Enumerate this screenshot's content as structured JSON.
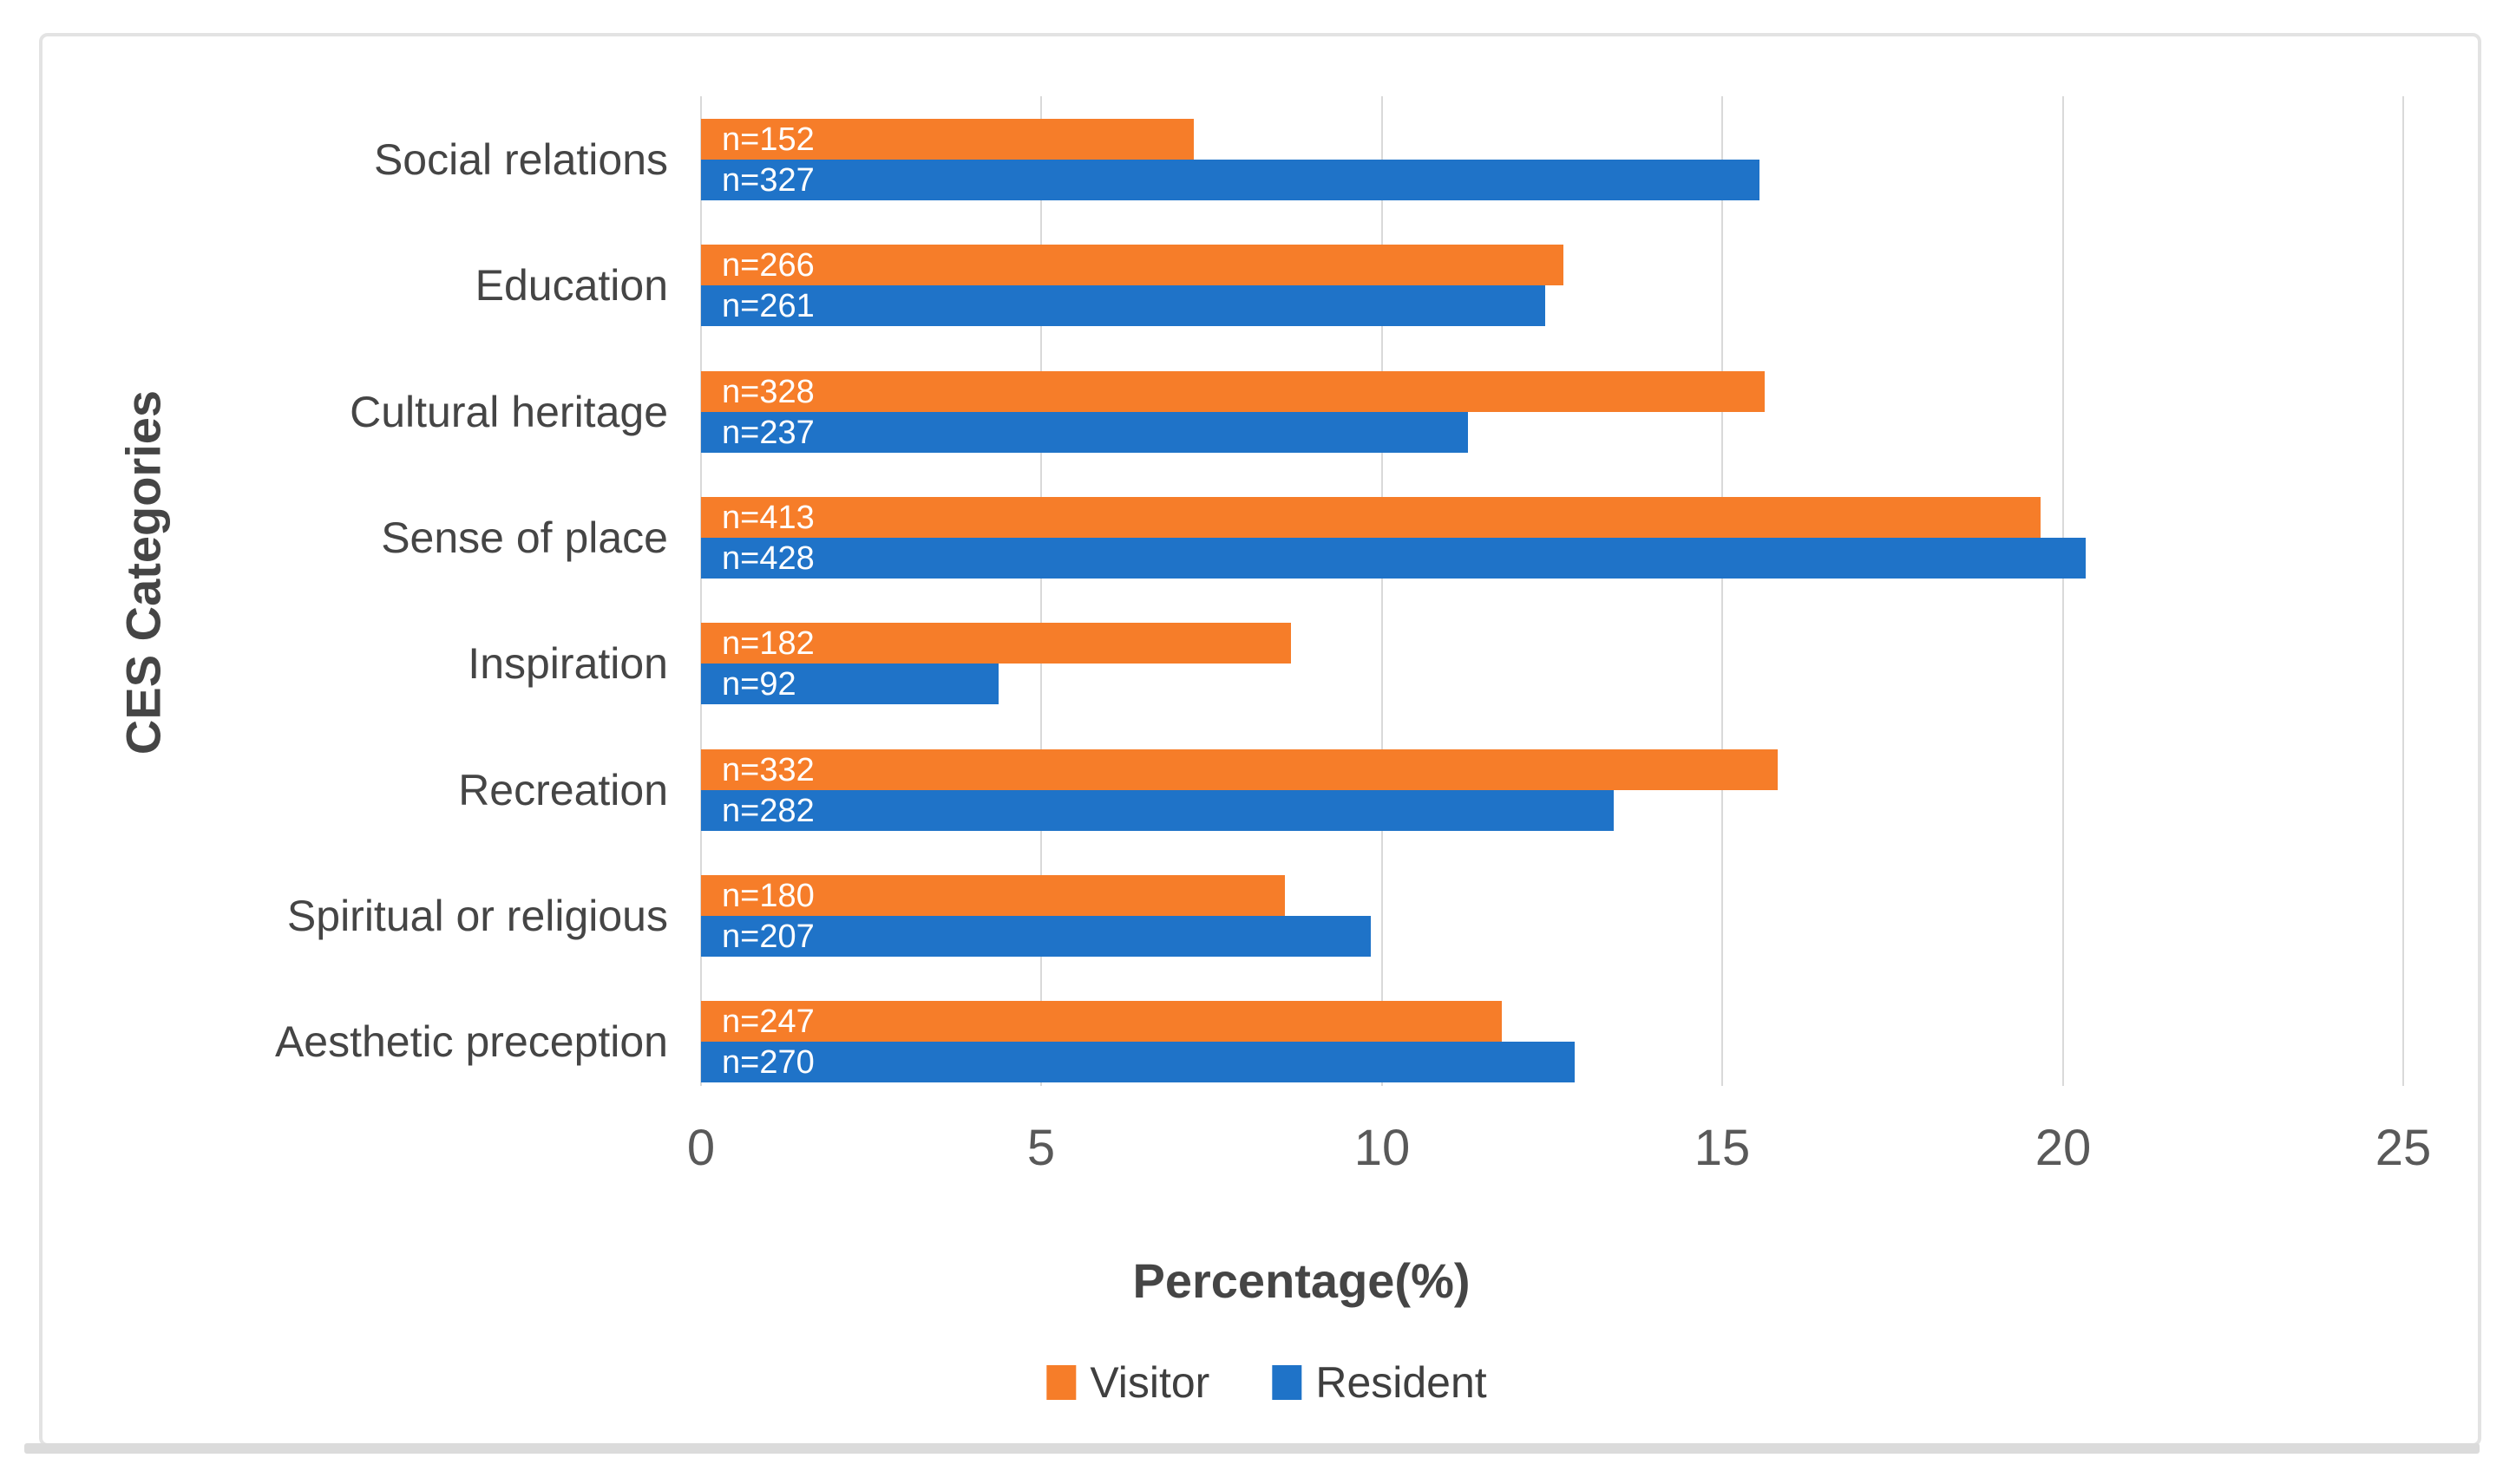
{
  "chart_data": {
    "type": "bar",
    "orientation": "horizontal",
    "xlabel": "Percentage(%)",
    "ylabel": "CES Categories",
    "xlim": [
      0,
      25
    ],
    "xticks": [
      0,
      5,
      10,
      15,
      20,
      25
    ],
    "xtick_labels": [
      "0",
      "5",
      "10",
      "15",
      "20",
      "25"
    ],
    "grid": true,
    "legend_position": "bottom",
    "categories": [
      "Social relations",
      "Education",
      "Cultural heritage",
      "Sense of place",
      "Inspiration",
      "Recreation",
      "Spiritual or religious",
      "Aesthetic preception"
    ],
    "series": [
      {
        "name": "Visitor",
        "color": "#F67D29",
        "values": [
          7.24,
          12.67,
          15.62,
          19.67,
          8.67,
          15.81,
          8.57,
          11.76
        ],
        "bar_labels": [
          "n=152",
          "n=266",
          "n=328",
          "n=413",
          "n=182",
          "n=332",
          "n=180",
          "n=247"
        ]
      },
      {
        "name": "Resident",
        "color": "#1F73C8",
        "values": [
          15.54,
          12.4,
          11.26,
          20.34,
          4.37,
          13.4,
          9.84,
          12.83
        ],
        "bar_labels": [
          "n=327",
          "n=261",
          "n=237",
          "n=428",
          "n=92",
          "n=282",
          "n=207",
          "n=270"
        ]
      }
    ],
    "colors": {
      "grid": "#D9D9D9",
      "axis_text": "#595959",
      "label_text": "#454545",
      "bar_label_text": "#FFFFFF"
    }
  }
}
